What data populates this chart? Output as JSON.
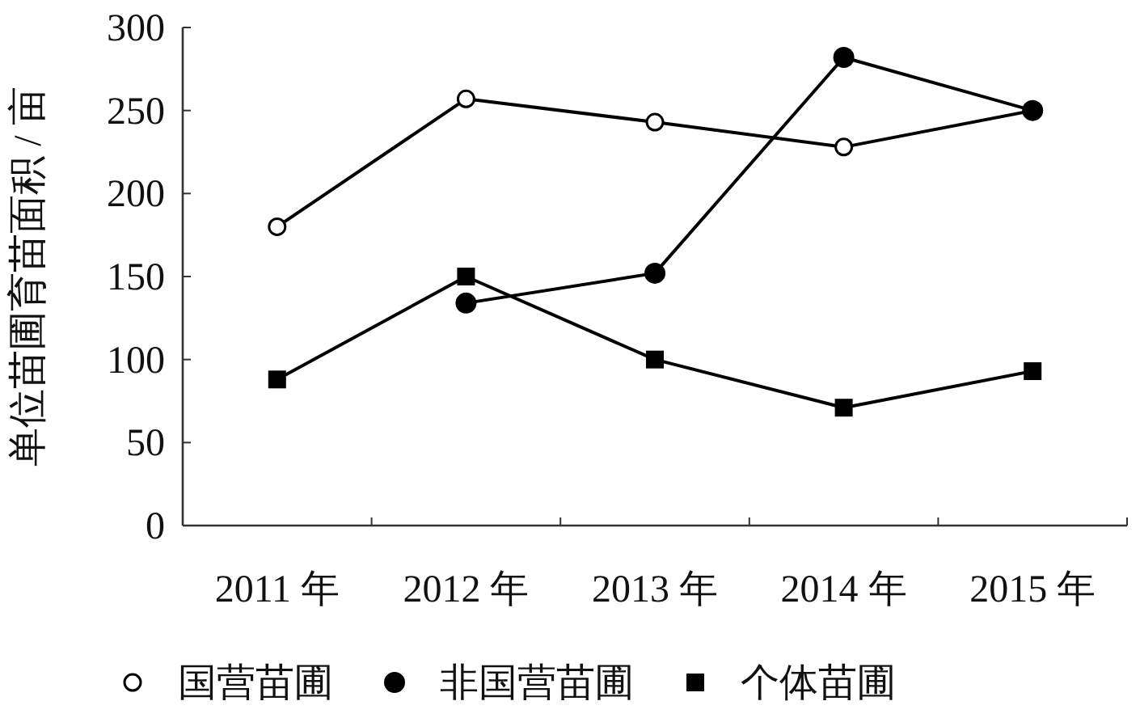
{
  "chart_data": {
    "type": "line",
    "ylabel": "单位苗圃育苗面积 / 亩",
    "categories": [
      "2011 年",
      "2012 年",
      "2013 年",
      "2014 年",
      "2015 年"
    ],
    "ylim": [
      0,
      300
    ],
    "yticks": [
      0,
      50,
      100,
      150,
      200,
      250,
      300
    ],
    "grid": false,
    "legend": "bottom",
    "line_style": "solid",
    "series": [
      {
        "name": "国营苗圃",
        "color": "#000000",
        "marker": "open circle",
        "values": [
          180,
          257,
          243,
          228,
          250
        ]
      },
      {
        "name": "非国营苗圃",
        "color": "#000000",
        "marker": "circle",
        "values": [
          null,
          134,
          152,
          282,
          250
        ]
      },
      {
        "name": "个体苗圃",
        "color": "#000000",
        "marker": "square",
        "values": [
          88,
          150,
          100,
          71,
          93
        ]
      }
    ]
  }
}
